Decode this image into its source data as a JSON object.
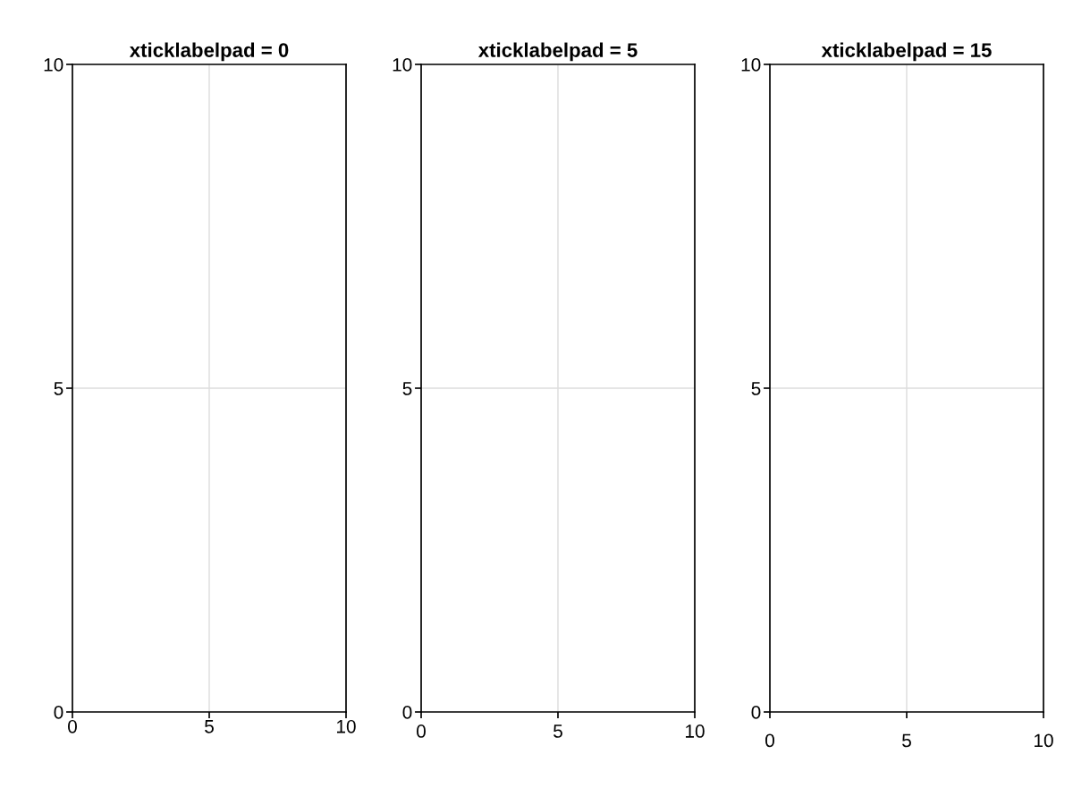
{
  "chart_data": [
    {
      "type": "scatter",
      "title": "xticklabelpad = 0",
      "xlim": [
        0,
        10
      ],
      "ylim": [
        0,
        10
      ],
      "xticks": [
        0,
        5,
        10
      ],
      "yticks": [
        0,
        5,
        10
      ],
      "grid": true
    },
    {
      "type": "scatter",
      "title": "xticklabelpad = 5",
      "xlim": [
        0,
        10
      ],
      "ylim": [
        0,
        10
      ],
      "xticks": [
        0,
        5,
        10
      ],
      "yticks": [
        0,
        5,
        10
      ],
      "grid": true
    },
    {
      "type": "scatter",
      "title": "xticklabelpad = 15",
      "xlim": [
        0,
        10
      ],
      "ylim": [
        0,
        10
      ],
      "xticks": [
        0,
        5,
        10
      ],
      "yticks": [
        0,
        5,
        10
      ],
      "grid": true
    }
  ]
}
